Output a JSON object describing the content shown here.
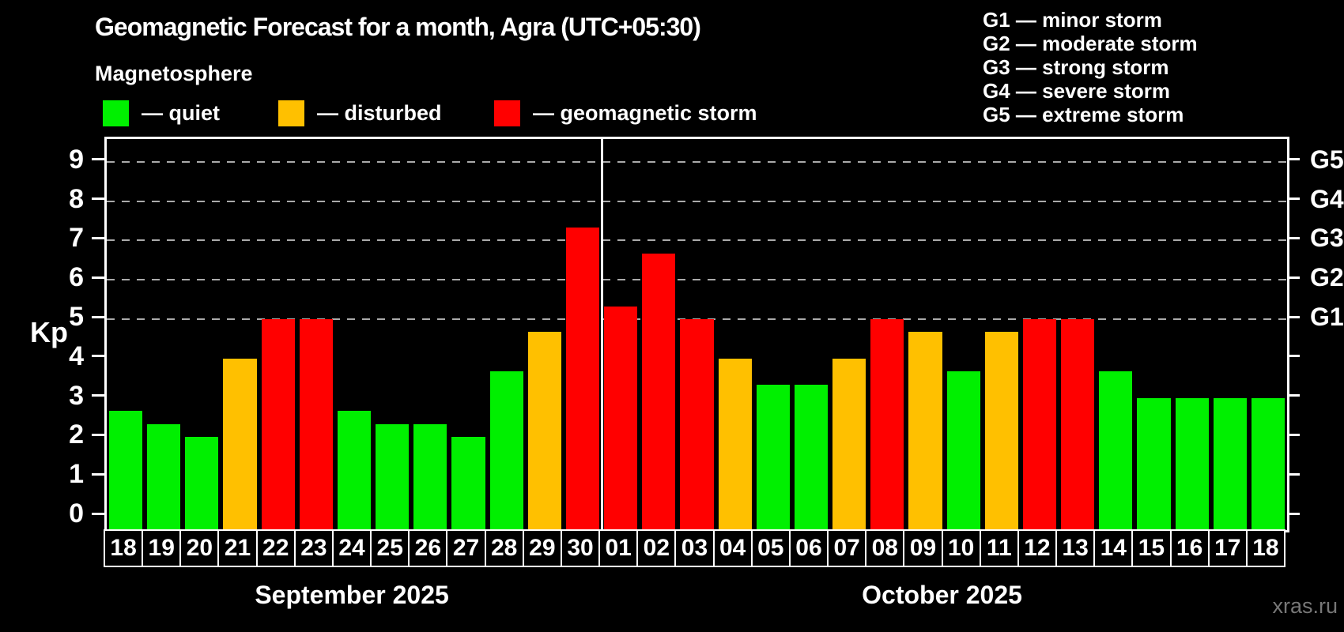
{
  "title": "Geomagnetic Forecast for a month, Agra (UTC+05:30)",
  "subtitle": "Magnetosphere",
  "watermark": "xras.ru",
  "legend": {
    "items": [
      {
        "key": "quiet",
        "label": "— quiet",
        "color": "#00f000"
      },
      {
        "key": "disturbed",
        "label": "— disturbed",
        "color": "#ffc000"
      },
      {
        "key": "storm",
        "label": "— geomagnetic storm",
        "color": "#ff0000"
      }
    ]
  },
  "g_legend": [
    "G1 — minor storm",
    "G2 — moderate storm",
    "G3 — strong storm",
    "G4 — severe storm",
    "G5 — extreme storm"
  ],
  "chart_data": {
    "type": "bar",
    "title": "Geomagnetic Forecast for a month, Agra (UTC+05:30)",
    "ylabel": "Kp",
    "ylim": [
      0,
      9
    ],
    "yticks": [
      0,
      1,
      2,
      3,
      4,
      5,
      6,
      7,
      8,
      9
    ],
    "gridlines_at": [
      5,
      6,
      7,
      8,
      9
    ],
    "grid": "dashed horizontal gray lines at Kp 5-9",
    "legend_position": "top-left",
    "right_axis": [
      {
        "value": 5,
        "label": "G1"
      },
      {
        "value": 6,
        "label": "G2"
      },
      {
        "value": 7,
        "label": "G3"
      },
      {
        "value": 8,
        "label": "G4"
      },
      {
        "value": 9,
        "label": "G5"
      }
    ],
    "colors": {
      "quiet": "#00f000",
      "disturbed": "#ffc000",
      "storm": "#ff0000"
    },
    "months": [
      {
        "label": "September 2025",
        "days": [
          {
            "day": "18",
            "kp": 2.67,
            "status": "quiet"
          },
          {
            "day": "19",
            "kp": 2.33,
            "status": "quiet"
          },
          {
            "day": "20",
            "kp": 2.0,
            "status": "quiet"
          },
          {
            "day": "21",
            "kp": 4.0,
            "status": "disturbed"
          },
          {
            "day": "22",
            "kp": 5.0,
            "status": "storm"
          },
          {
            "day": "23",
            "kp": 5.0,
            "status": "storm"
          },
          {
            "day": "24",
            "kp": 2.67,
            "status": "quiet"
          },
          {
            "day": "25",
            "kp": 2.33,
            "status": "quiet"
          },
          {
            "day": "26",
            "kp": 2.33,
            "status": "quiet"
          },
          {
            "day": "27",
            "kp": 2.0,
            "status": "quiet"
          },
          {
            "day": "28",
            "kp": 3.67,
            "status": "quiet"
          },
          {
            "day": "29",
            "kp": 4.67,
            "status": "disturbed"
          },
          {
            "day": "30",
            "kp": 7.33,
            "status": "storm"
          }
        ]
      },
      {
        "label": "October 2025",
        "days": [
          {
            "day": "01",
            "kp": 5.33,
            "status": "storm"
          },
          {
            "day": "02",
            "kp": 6.67,
            "status": "storm"
          },
          {
            "day": "03",
            "kp": 5.0,
            "status": "storm"
          },
          {
            "day": "04",
            "kp": 4.0,
            "status": "disturbed"
          },
          {
            "day": "05",
            "kp": 3.33,
            "status": "quiet"
          },
          {
            "day": "06",
            "kp": 3.33,
            "status": "quiet"
          },
          {
            "day": "07",
            "kp": 4.0,
            "status": "disturbed"
          },
          {
            "day": "08",
            "kp": 5.0,
            "status": "storm"
          },
          {
            "day": "09",
            "kp": 4.67,
            "status": "disturbed"
          },
          {
            "day": "10",
            "kp": 3.67,
            "status": "quiet"
          },
          {
            "day": "11",
            "kp": 4.67,
            "status": "disturbed"
          },
          {
            "day": "12",
            "kp": 5.0,
            "status": "storm"
          },
          {
            "day": "13",
            "kp": 5.0,
            "status": "storm"
          },
          {
            "day": "14",
            "kp": 3.67,
            "status": "quiet"
          },
          {
            "day": "15",
            "kp": 3.0,
            "status": "quiet"
          },
          {
            "day": "16",
            "kp": 3.0,
            "status": "quiet"
          },
          {
            "day": "17",
            "kp": 3.0,
            "status": "quiet"
          },
          {
            "day": "18",
            "kp": 3.0,
            "status": "quiet"
          }
        ]
      }
    ]
  }
}
